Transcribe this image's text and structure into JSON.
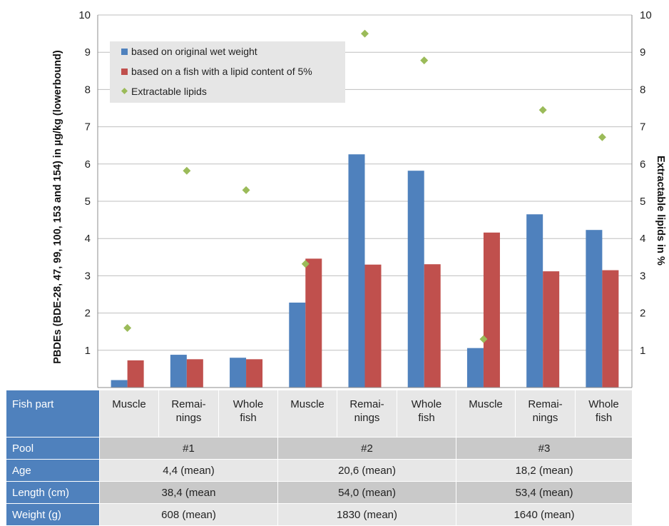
{
  "chart_data": {
    "type": "bar",
    "categories": [
      "Muscle",
      "Remai-\nnings",
      "Whole\nfish",
      "Muscle",
      "Remai-\nnings",
      "Whole\nfish",
      "Muscle",
      "Remai-\nnings",
      "Whole\nfish"
    ],
    "series": [
      {
        "name": "based on original wet weight",
        "type": "bar",
        "axis": "left",
        "color": "#4f81bd",
        "values": [
          0.2,
          0.88,
          0.8,
          2.28,
          6.26,
          5.82,
          1.06,
          4.65,
          4.23
        ]
      },
      {
        "name": "based on a fish with a lipid content of 5%",
        "type": "bar",
        "axis": "left",
        "color": "#c0504d",
        "values": [
          0.73,
          0.76,
          0.76,
          3.46,
          3.3,
          3.31,
          4.16,
          3.12,
          3.15
        ]
      },
      {
        "name": "Extractable lipids",
        "type": "scatter",
        "axis": "right",
        "marker": "diamond",
        "color": "#9bbb59",
        "values": [
          1.6,
          5.82,
          5.3,
          3.32,
          9.5,
          8.78,
          1.3,
          7.45,
          6.72
        ]
      }
    ],
    "ylabel": "PBDEs (BDE-28, 47, 99, 100, 153 and 154) in µg/kg (lowerbound)",
    "y2label": "Extractable lipids in %",
    "ylim": [
      0,
      10
    ],
    "y2lim": [
      0,
      10
    ],
    "yticks": [
      "1",
      "2",
      "3",
      "4",
      "5",
      "6",
      "7",
      "8",
      "9",
      "10"
    ],
    "y2ticks": [
      "1",
      "2",
      "3",
      "4",
      "5",
      "6",
      "7",
      "8",
      "9",
      "10"
    ],
    "grid": true,
    "legend_position": "top-left"
  },
  "table": {
    "row_labels": {
      "part": "Fish part",
      "pool": "Pool",
      "age": "Age",
      "length": "Length (cm)",
      "weight": "Weight (g)"
    },
    "parts": [
      "Muscle",
      "Remai-\nnings",
      "Whole\nfish",
      "Muscle",
      "Remai-\nnings",
      "Whole\nfish",
      "Muscle",
      "Remai-\nnings",
      "Whole\nfish"
    ],
    "groups": [
      {
        "pool": "#1",
        "age": "4,4 (mean)",
        "length": "38,4 (mean",
        "weight": "608 (mean)"
      },
      {
        "pool": "#2",
        "age": "20,6 (mean)",
        "length": "54,0 (mean)",
        "weight": "1830 (mean)"
      },
      {
        "pool": "#3",
        "age": "18,2 (mean)",
        "length": "53,4 (mean)",
        "weight": "1640 (mean)"
      }
    ]
  }
}
